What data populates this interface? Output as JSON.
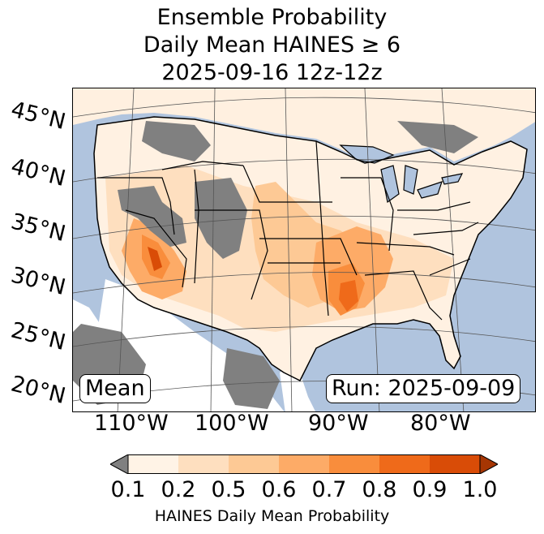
{
  "title": {
    "line1": "Ensemble Probability",
    "line2": "Daily Mean HAINES ≥ 6",
    "line3": "2025-09-16 12z-12z"
  },
  "map": {
    "latitude_labels": [
      "45°N",
      "40°N",
      "35°N",
      "30°N",
      "25°N",
      "20°N"
    ],
    "longitude_labels": [
      "110°W",
      "100°W",
      "90°W",
      "80°W"
    ],
    "stat_label": "Mean",
    "run_label": "Run: 2025-09-09",
    "colors": {
      "ocean": "#b0c4de",
      "land": "#ffffff",
      "missing": "#808080"
    }
  },
  "colorbar": {
    "ticks": [
      "0.1",
      "0.2",
      "0.5",
      "0.6",
      "0.7",
      "0.8",
      "0.9",
      "1.0"
    ],
    "colors": [
      "#fff3e6",
      "#fedfbf",
      "#fdc995",
      "#fdab67",
      "#f98d3c",
      "#ef6a1a",
      "#d94c07"
    ],
    "under_color": "#808080",
    "over_color": "#a63603",
    "label": "HAINES Daily Mean Probability"
  }
}
